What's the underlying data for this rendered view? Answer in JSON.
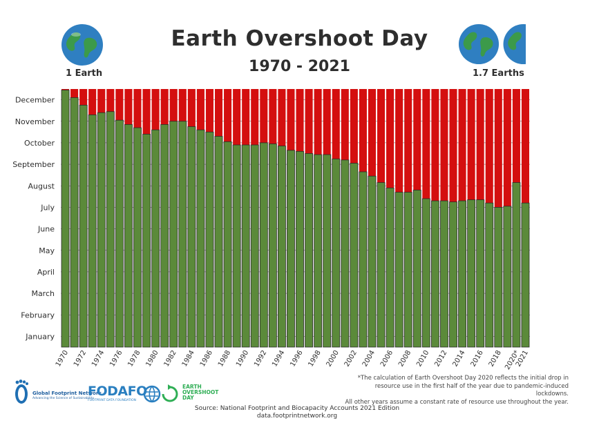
{
  "header": {
    "title": "Earth Overshoot Day",
    "subtitle": "1970 - 2021",
    "left_label": "1 Earth",
    "right_label": "1.7 Earths"
  },
  "colors": {
    "overshoot_red": "#d40f0f",
    "earth_green": "#5b8a3a",
    "bar_border": "#2a2a2a",
    "grid": "#555555"
  },
  "chart_data": {
    "type": "bar",
    "stacked": true,
    "x": [
      1970,
      1971,
      1972,
      1973,
      1974,
      1975,
      1976,
      1977,
      1978,
      1979,
      1980,
      1981,
      1982,
      1983,
      1984,
      1985,
      1986,
      1987,
      1988,
      1989,
      1990,
      1991,
      1992,
      1993,
      1994,
      1995,
      1996,
      1997,
      1998,
      1999,
      2000,
      2001,
      2002,
      2003,
      2004,
      2005,
      2006,
      2007,
      2008,
      2009,
      2010,
      2011,
      2012,
      2013,
      2014,
      2015,
      2016,
      2017,
      2018,
      2019,
      2020,
      2021
    ],
    "x_tick_labels": [
      "1970",
      "1972",
      "1974",
      "1976",
      "1978",
      "1980",
      "1982",
      "1984",
      "1986",
      "1988",
      "1990",
      "1992",
      "1994",
      "1996",
      "1998",
      "2000",
      "2002",
      "2004",
      "2006",
      "2008",
      "2010",
      "2012",
      "2014",
      "2016",
      "2018",
      "2020*",
      "2021"
    ],
    "y_tick_labels": [
      "January",
      "February",
      "March",
      "April",
      "May",
      "June",
      "July",
      "August",
      "September",
      "October",
      "November",
      "December"
    ],
    "ylim": [
      0,
      12
    ],
    "series": [
      {
        "color": "#5b8a3a",
        "values": [
          11.95,
          11.6,
          11.25,
          10.8,
          10.9,
          10.95,
          10.55,
          10.35,
          10.2,
          9.9,
          10.1,
          10.35,
          10.5,
          10.5,
          10.25,
          10.1,
          10.0,
          9.8,
          9.55,
          9.4,
          9.4,
          9.4,
          9.5,
          9.45,
          9.35,
          9.15,
          9.1,
          9.0,
          8.95,
          8.95,
          8.75,
          8.7,
          8.55,
          8.15,
          7.95,
          7.65,
          7.4,
          7.2,
          7.2,
          7.3,
          6.9,
          6.8,
          6.8,
          6.75,
          6.8,
          6.85,
          6.85,
          6.7,
          6.5,
          6.55,
          7.65,
          6.7
        ]
      },
      {
        "color": "#d40f0f",
        "values": [
          0.05,
          0.4,
          0.75,
          1.2,
          1.1,
          1.05,
          1.45,
          1.65,
          1.8,
          2.1,
          1.9,
          1.65,
          1.5,
          1.5,
          1.75,
          1.9,
          2.0,
          2.2,
          2.45,
          2.6,
          2.6,
          2.6,
          2.5,
          2.55,
          2.65,
          2.85,
          2.9,
          3.0,
          3.05,
          3.05,
          3.25,
          3.3,
          3.45,
          3.85,
          4.05,
          4.35,
          4.6,
          4.8,
          4.8,
          4.7,
          5.1,
          5.2,
          5.2,
          5.25,
          5.2,
          5.15,
          5.15,
          5.3,
          5.5,
          5.45,
          4.35,
          5.3
        ]
      }
    ]
  },
  "footnote": {
    "line1": "*The calculation of Earth Overshoot Day 2020 reflects the initial drop in",
    "line2": "resource use in the first half of the year due to pandemic-induced lockdowns.",
    "line3": "All other years assume a constant rate of resource use throughout the year."
  },
  "source": {
    "line1": "Source: National Footprint and Biocapacity Accounts 2021 Edition",
    "line2": "data.footprintnetwork.org"
  },
  "logos": {
    "gfn_name": "Global Footprint Network",
    "gfn_tagline": "Advancing the Science of Sustainability",
    "fodafo_name": "FODAFO",
    "fodafo_tagline": "FOOTPRINT DATA FOUNDATION",
    "eod_line1": "EARTH",
    "eod_line2": "OVERSHOOT",
    "eod_line3": "DAY"
  }
}
